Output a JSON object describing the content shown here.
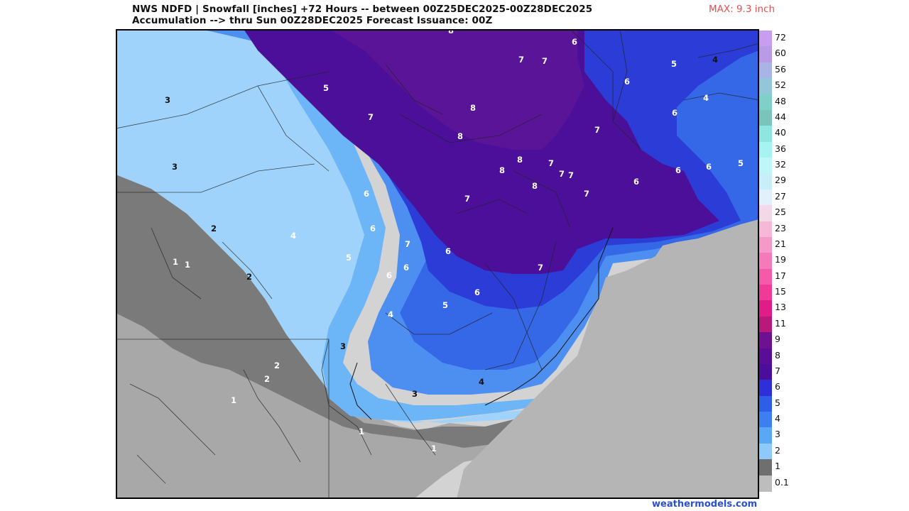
{
  "header": {
    "title_line1": "NWS NDFD | Snowfall [inches] +72 Hours -- between 00Z25DEC2025-00Z28DEC2025",
    "title_line2": "Accumulation --> thru Sun 00Z28DEC2025   Forecast Issuance: 00Z",
    "max_label": "MAX: 9.3 inch"
  },
  "credit": "weathermodels.com",
  "legend": {
    "levels": [
      "72",
      "60",
      "56",
      "52",
      "48",
      "44",
      "40",
      "36",
      "32",
      "29",
      "27",
      "25",
      "23",
      "21",
      "19",
      "17",
      "15",
      "13",
      "11",
      "9",
      "8",
      "7",
      "6",
      "5",
      "4",
      "3",
      "2",
      "1",
      "0.1"
    ],
    "colors": [
      "#c89cf0",
      "#b89ae6",
      "#a9b4e6",
      "#93c6d8",
      "#7fd0c8",
      "#7ac4bb",
      "#8de6e0",
      "#a5f3f3",
      "#bff6f7",
      "#c8eefa",
      "#e1f0fb",
      "#f3d8ea",
      "#f5b8d6",
      "#f59ac8",
      "#f57ab9",
      "#f55aa9",
      "#f03a98",
      "#e01c88",
      "#b8197a",
      "#6e1190",
      "#5a0d96",
      "#4a0d9c",
      "#2e2fd8",
      "#2e5de8",
      "#3d7ff0",
      "#5aa7f6",
      "#8fc9f9",
      "#6f6f6f",
      "#bdbdbd"
    ]
  },
  "map": {
    "zone_colors": {
      "snow_0_1": "#d3d3d3",
      "snow_1": "#a8a8a8",
      "snow_2": "#7a7a7a",
      "snow_2_3": "#9fd3fb",
      "snow_3": "#6cb5f6",
      "snow_4": "#4d8ff0",
      "snow_5": "#3568e6",
      "snow_6": "#2b3dd6",
      "snow_7": "#4b0f9a",
      "snow_8": "#5a1497",
      "ocean": "#b5b5b5"
    },
    "contour_labels": [
      {
        "text": "8"
      },
      {
        "text": "6"
      },
      {
        "text": "7"
      },
      {
        "text": "7"
      },
      {
        "text": "5"
      },
      {
        "text": "4"
      },
      {
        "text": "5"
      },
      {
        "text": "6"
      },
      {
        "text": "4"
      },
      {
        "text": "6"
      },
      {
        "text": "3"
      },
      {
        "text": "7"
      },
      {
        "text": "8"
      },
      {
        "text": "8"
      },
      {
        "text": "7"
      },
      {
        "text": "3"
      },
      {
        "text": "8"
      },
      {
        "text": "8"
      },
      {
        "text": "7"
      },
      {
        "text": "7"
      },
      {
        "text": "7"
      },
      {
        "text": "6"
      },
      {
        "text": "6"
      },
      {
        "text": "5"
      },
      {
        "text": "8"
      },
      {
        "text": "7"
      },
      {
        "text": "6"
      },
      {
        "text": "6"
      },
      {
        "text": "7"
      },
      {
        "text": "2"
      },
      {
        "text": "4"
      },
      {
        "text": "7"
      },
      {
        "text": "6"
      },
      {
        "text": "5"
      },
      {
        "text": "6"
      },
      {
        "text": "6"
      },
      {
        "text": "6"
      },
      {
        "text": "7"
      },
      {
        "text": "1"
      },
      {
        "text": "1"
      },
      {
        "text": "2"
      },
      {
        "text": "4"
      },
      {
        "text": "5"
      },
      {
        "text": "6"
      },
      {
        "text": "3"
      },
      {
        "text": "2"
      },
      {
        "text": "2"
      },
      {
        "text": "3"
      },
      {
        "text": "4"
      },
      {
        "text": "1"
      },
      {
        "text": "1"
      },
      {
        "text": "1"
      }
    ]
  }
}
